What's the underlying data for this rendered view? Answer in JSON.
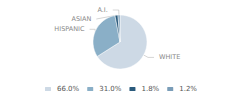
{
  "chart_data": {
    "type": "pie",
    "categories": [
      "WHITE",
      "HISPANIC",
      "ASIAN",
      "A.I."
    ],
    "values": [
      66.0,
      31.0,
      1.8,
      1.2
    ],
    "value_labels": [
      "66.0%",
      "31.0%",
      "1.8%",
      "1.2%"
    ],
    "colors": [
      "#cdd9e5",
      "#8aafc7",
      "#2a5a7c",
      "#7a9db8"
    ],
    "legend": "bottom"
  }
}
